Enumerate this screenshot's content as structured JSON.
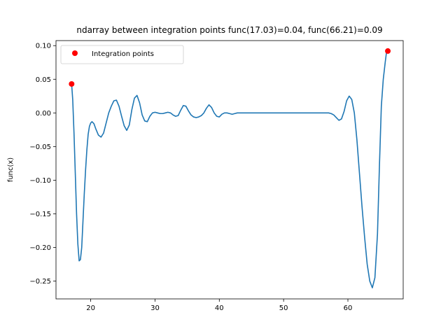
{
  "chart_data": {
    "type": "line",
    "title": "ndarray between integration points func(17.03)=0.04, func(66.21)=0.09",
    "xlabel": "",
    "ylabel": "func(x)",
    "xlim": [
      14.6,
      68.6
    ],
    "ylim": [
      -0.2765,
      0.1075
    ],
    "xticks": [
      20,
      30,
      40,
      50,
      60
    ],
    "yticks": [
      0.1,
      0.05,
      0.0,
      -0.05,
      -0.1,
      -0.15,
      -0.2,
      -0.25
    ],
    "ytick_labels": [
      "0.10",
      "0.05",
      "0.00",
      "−0.05",
      "−0.10",
      "−0.15",
      "−0.20",
      "−0.25"
    ],
    "grid": false,
    "legend": {
      "placement": "top-left",
      "entries": [
        "Integration points"
      ]
    },
    "series": [
      {
        "kind": "line",
        "color": "#1f77b4",
        "x": [
          17.03,
          17.2,
          17.4,
          17.6,
          17.8,
          18.0,
          18.2,
          18.4,
          18.6,
          18.8,
          19.0,
          19.2,
          19.4,
          19.6,
          19.8,
          20.0,
          20.2,
          20.5,
          20.8,
          21.2,
          21.6,
          22.0,
          22.4,
          22.8,
          23.2,
          23.6,
          24.0,
          24.4,
          24.8,
          25.2,
          25.6,
          26.0,
          26.4,
          26.8,
          27.2,
          27.6,
          28.0,
          28.4,
          28.8,
          29.2,
          29.6,
          30.0,
          30.4,
          30.8,
          31.2,
          31.6,
          32.0,
          32.4,
          32.8,
          33.2,
          33.6,
          34.0,
          34.4,
          34.8,
          35.2,
          35.6,
          36.0,
          36.4,
          36.8,
          37.2,
          37.6,
          38.0,
          38.4,
          38.8,
          39.2,
          39.6,
          40.0,
          40.4,
          40.8,
          41.2,
          41.6,
          42.0,
          42.4,
          42.8,
          43.2,
          43.6,
          44.0,
          44.4,
          44.8,
          45.2,
          45.6,
          46.0,
          46.4,
          46.8,
          47.2,
          47.6,
          48.0,
          49.0,
          50.0,
          51.0,
          52.0,
          53.0,
          54.0,
          55.0,
          56.0,
          57.0,
          57.4,
          57.8,
          58.2,
          58.6,
          59.0,
          59.4,
          59.8,
          60.2,
          60.6,
          61.0,
          61.4,
          61.8,
          62.2,
          62.6,
          63.0,
          63.4,
          63.8,
          64.2,
          64.6,
          64.9,
          65.2,
          65.5,
          65.8,
          66.0,
          66.21
        ],
        "y": [
          0.043,
          0.02,
          -0.03,
          -0.09,
          -0.15,
          -0.195,
          -0.22,
          -0.218,
          -0.2,
          -0.16,
          -0.12,
          -0.085,
          -0.055,
          -0.032,
          -0.02,
          -0.015,
          -0.013,
          -0.016,
          -0.024,
          -0.033,
          -0.036,
          -0.03,
          -0.015,
          0.0,
          0.01,
          0.018,
          0.019,
          0.01,
          -0.005,
          -0.019,
          -0.026,
          -0.018,
          0.005,
          0.022,
          0.026,
          0.015,
          -0.003,
          -0.012,
          -0.013,
          -0.005,
          0.0,
          0.001,
          0.0,
          -0.001,
          -0.001,
          0.0,
          0.001,
          0.0,
          -0.003,
          -0.005,
          -0.004,
          0.004,
          0.011,
          0.01,
          0.003,
          -0.003,
          -0.006,
          -0.007,
          -0.006,
          -0.004,
          0.0,
          0.007,
          0.012,
          0.008,
          0.0,
          -0.005,
          -0.006,
          -0.002,
          0.0,
          0.0,
          -0.001,
          -0.002,
          -0.001,
          0.0,
          0.0,
          0.0,
          0.0,
          0.0,
          0.0,
          0.0,
          0.0,
          0.0,
          0.0,
          0.0,
          0.0,
          0.0,
          0.0,
          0.0,
          0.0,
          0.0,
          0.0,
          0.0,
          0.0,
          0.0,
          0.0,
          0.0,
          -0.001,
          -0.003,
          -0.007,
          -0.011,
          -0.009,
          0.002,
          0.018,
          0.025,
          0.02,
          0.0,
          -0.04,
          -0.09,
          -0.14,
          -0.185,
          -0.225,
          -0.25,
          -0.26,
          -0.245,
          -0.18,
          -0.08,
          0.01,
          0.05,
          0.075,
          0.09,
          0.092
        ]
      },
      {
        "kind": "scatter",
        "name": "Integration points",
        "color": "#ff0000",
        "x": [
          17.03,
          66.21
        ],
        "y": [
          0.043,
          0.092
        ]
      }
    ]
  }
}
